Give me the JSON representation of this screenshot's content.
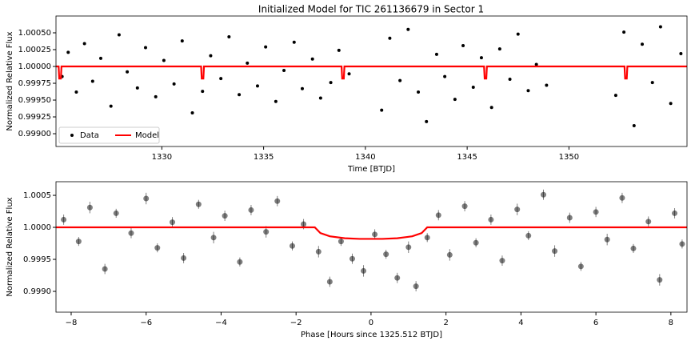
{
  "chart_data": [
    {
      "type": "scatter",
      "title": "Initialized Model for TIC 261136679 in Sector 1",
      "xlabel": "Time [BTJD]",
      "ylabel": "Normalized Relative Flux",
      "xlim": [
        1324.8,
        1355.8
      ],
      "ylim": [
        0.99881,
        1.00075
      ],
      "xticks": [
        1330,
        1335,
        1340,
        1345,
        1350
      ],
      "yticks": [
        {
          "value": 0.999,
          "label": "0.99900"
        },
        {
          "value": 0.99925,
          "label": "0.99925"
        },
        {
          "value": 0.9995,
          "label": "0.99950"
        },
        {
          "value": 0.99975,
          "label": "0.99975"
        },
        {
          "value": 1.0,
          "label": "1.00000"
        },
        {
          "value": 1.00025,
          "label": "1.00025"
        },
        {
          "value": 1.0005,
          "label": "1.00050"
        }
      ],
      "legend": "lower left",
      "series": [
        {
          "name": "Data",
          "color": "#000000",
          "x": [
            1325.1,
            1325.4,
            1325.8,
            1326.2,
            1326.6,
            1327.0,
            1327.5,
            1327.9,
            1328.3,
            1328.8,
            1329.2,
            1329.7,
            1330.1,
            1330.6,
            1331.0,
            1331.5,
            1332.0,
            1332.4,
            1332.9,
            1333.3,
            1333.8,
            1334.2,
            1334.7,
            1335.1,
            1335.6,
            1336.0,
            1336.5,
            1336.9,
            1337.4,
            1337.8,
            1338.3,
            1338.7,
            1339.2,
            1340.8,
            1341.2,
            1341.7,
            1342.1,
            1342.6,
            1343.0,
            1343.5,
            1343.9,
            1344.4,
            1344.8,
            1345.3,
            1345.7,
            1346.2,
            1346.6,
            1347.1,
            1347.5,
            1348.0,
            1348.4,
            1348.9,
            1352.3,
            1352.7,
            1353.2,
            1353.6,
            1354.1,
            1354.5,
            1355.0,
            1355.5
          ],
          "values": [
            0.99985,
            1.00021,
            0.99962,
            1.00034,
            0.99978,
            1.00012,
            0.99941,
            1.00047,
            0.99992,
            0.99968,
            1.00028,
            0.99955,
            1.00009,
            0.99974,
            1.00038,
            0.99931,
            0.99963,
            1.00016,
            0.99982,
            1.00044,
            0.99958,
            1.00005,
            0.99971,
            1.00029,
            0.99948,
            0.99994,
            1.00036,
            0.99967,
            1.00011,
            0.99953,
            0.99976,
            1.00024,
            0.99989,
            0.99935,
            1.00042,
            0.99979,
            1.00055,
            0.99962,
            0.99918,
            1.00018,
            0.99985,
            0.99951,
            1.00031,
            0.99969,
            1.00013,
            0.99939,
            1.00026,
            0.99981,
            1.00048,
            0.99964,
            1.00003,
            0.99972,
            0.99957,
            1.00051,
            0.99912,
            1.00033,
            0.99976,
            1.00059,
            0.99945,
            1.00019
          ]
        },
        {
          "name": "Model",
          "color": "#ff0000",
          "style": "line",
          "x": [
            1324.8,
            1324.93,
            1324.96,
            1325.04,
            1325.07,
            1331.93,
            1331.96,
            1332.04,
            1332.07,
            1338.83,
            1338.86,
            1338.94,
            1338.97,
            1345.83,
            1345.86,
            1345.94,
            1345.97,
            1352.73,
            1352.76,
            1352.84,
            1352.87,
            1355.8
          ],
          "values": [
            1.0,
            1.0,
            0.99982,
            0.99982,
            1.0,
            1.0,
            0.99982,
            0.99982,
            1.0,
            1.0,
            0.99982,
            0.99982,
            1.0,
            1.0,
            0.99982,
            0.99982,
            1.0,
            1.0,
            0.99982,
            0.99982,
            1.0,
            1.0
          ]
        }
      ]
    },
    {
      "type": "scatter",
      "xlabel": "Phase [Hours since 1325.512 BTJD]",
      "ylabel": "Normalized Relative Flux",
      "xlim": [
        -8.405,
        8.43
      ],
      "ylim": [
        0.998675,
        1.000713
      ],
      "xticks": [
        {
          "value": -8,
          "label": "−8"
        },
        {
          "value": -6,
          "label": "−6"
        },
        {
          "value": -4,
          "label": "−4"
        },
        {
          "value": -2,
          "label": "−2"
        },
        0,
        2,
        4,
        6,
        8
      ],
      "yticks": [
        {
          "value": 0.999,
          "label": "0.9990"
        },
        {
          "value": 0.9995,
          "label": "0.9995"
        },
        {
          "value": 1.0,
          "label": "1.0000"
        },
        {
          "value": 1.0005,
          "label": "1.0005"
        }
      ],
      "series": [
        {
          "color": "#000000",
          "x": [
            -8.2,
            -7.8,
            -7.5,
            -7.1,
            -6.8,
            -6.4,
            -6.0,
            -5.7,
            -5.3,
            -5.0,
            -4.6,
            -4.2,
            -3.9,
            -3.5,
            -3.2,
            -2.8,
            -2.5,
            -2.1,
            -1.8,
            -1.4,
            -1.1,
            -0.8,
            -0.5,
            -0.2,
            0.1,
            0.4,
            0.7,
            1.0,
            1.2,
            1.5,
            1.8,
            2.1,
            2.5,
            2.8,
            3.2,
            3.5,
            3.9,
            4.2,
            4.6,
            4.9,
            5.3,
            5.6,
            6.0,
            6.3,
            6.7,
            7.0,
            7.4,
            7.7,
            8.1,
            8.3
          ],
          "values": [
            1.00012,
            0.99978,
            1.00031,
            0.99935,
            1.00022,
            0.99991,
            1.00045,
            0.99968,
            1.00008,
            0.99952,
            1.00036,
            0.99984,
            1.00018,
            0.99946,
            1.00027,
            0.99993,
            1.00041,
            0.99971,
            1.00005,
            0.99962,
            0.99915,
            0.99978,
            0.99951,
            0.99932,
            0.99989,
            0.99958,
            0.99921,
            0.99969,
            0.99908,
            0.99984,
            1.00019,
            0.99957,
            1.00033,
            0.99976,
            1.00012,
            0.99948,
            1.00028,
            0.99987,
            1.00051,
            0.99963,
            1.00015,
            0.99939,
            1.00024,
            0.99981,
            1.00046,
            0.99967,
            1.00009,
            0.99918,
            1.00022,
            0.99974
          ],
          "errors": [
            8e-05,
            7e-05,
            9e-05,
            8e-05,
            7e-05,
            8e-05,
            9e-05,
            7e-05,
            8e-05,
            8e-05,
            7e-05,
            9e-05,
            8e-05,
            7e-05,
            8e-05,
            9e-05,
            8e-05,
            7e-05,
            8e-05,
            9e-05,
            8e-05,
            7e-05,
            8e-05,
            9e-05,
            8e-05,
            7e-05,
            8e-05,
            9e-05,
            8e-05,
            7e-05,
            8e-05,
            9e-05,
            8e-05,
            7e-05,
            8e-05,
            8e-05,
            9e-05,
            7e-05,
            8e-05,
            9e-05,
            8e-05,
            7e-05,
            8e-05,
            9e-05,
            8e-05,
            7e-05,
            8e-05,
            9e-05,
            8e-05,
            7e-05
          ]
        },
        {
          "color": "#ff0000",
          "style": "line",
          "x": [
            -8.405,
            -1.5,
            -1.35,
            -1.1,
            -0.7,
            -0.3,
            0.0,
            0.3,
            0.7,
            1.1,
            1.35,
            1.5,
            8.43
          ],
          "values": [
            1.0,
            1.0,
            0.99991,
            0.99986,
            0.99983,
            0.99982,
            0.99982,
            0.99982,
            0.99983,
            0.99986,
            0.99991,
            1.0,
            1.0
          ]
        }
      ]
    }
  ]
}
